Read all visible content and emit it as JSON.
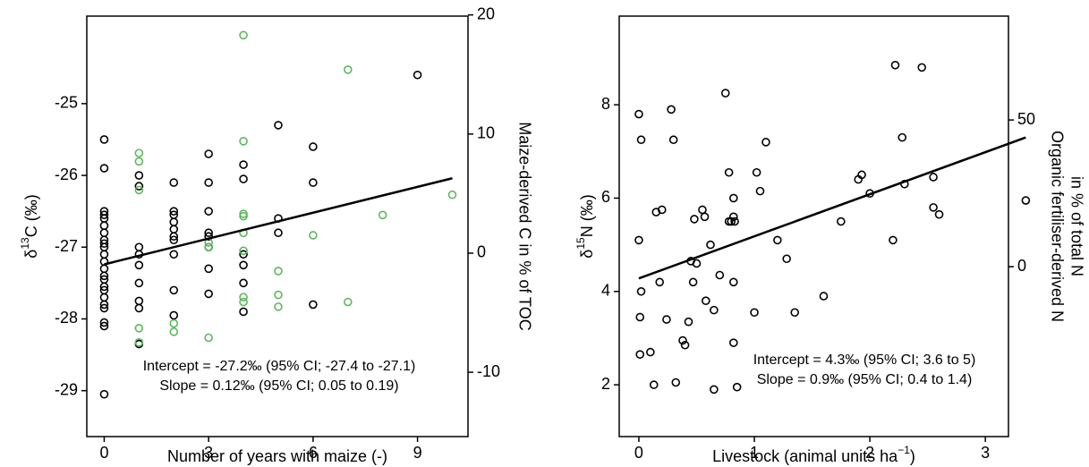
{
  "chart_data": [
    {
      "type": "scatter",
      "xlabel": "Number of years with maize (-)",
      "ylabel": [
        "δ",
        "13",
        "C (‰)"
      ],
      "y2label": "Maize-derived C in % of TOC",
      "xlim": [
        -0.5,
        10.45
      ],
      "xticks": [
        0,
        3,
        6,
        9
      ],
      "ylim": [
        -29.64,
        -23.78
      ],
      "yticks": [
        -29,
        -28,
        -27,
        -26,
        -25
      ],
      "y2lim": [
        -15.4,
        19.9
      ],
      "y2ticks": [
        -10,
        0,
        10,
        20
      ],
      "grid": false,
      "annotations": [
        "Intercept = -27.2‰ (95% CI; -27.4 to -27.1)",
        "Slope = 0.12‰ (95% CI; 0.05 to 0.19)"
      ],
      "series": [
        {
          "color": "#000000",
          "x": [
            0,
            0,
            0,
            0,
            0,
            0,
            0,
            0,
            0,
            0,
            0,
            0,
            0,
            0,
            0,
            0,
            0,
            0,
            0,
            0,
            0,
            0,
            0,
            1,
            1,
            1,
            1,
            1,
            1,
            1,
            1,
            1,
            2,
            2,
            2,
            2,
            2,
            2,
            2,
            2,
            2,
            2,
            3,
            3,
            3,
            3,
            3,
            3,
            3,
            3,
            4,
            4,
            4,
            4,
            4,
            4,
            5,
            5,
            5,
            6,
            6,
            6,
            9
          ],
          "values": [
            -25.5,
            -25.9,
            -26.5,
            -26.55,
            -26.6,
            -26.7,
            -26.8,
            -26.9,
            -26.95,
            -27.0,
            -27.1,
            -27.2,
            -27.3,
            -27.4,
            -27.45,
            -27.55,
            -27.6,
            -27.7,
            -27.8,
            -27.85,
            -28.05,
            -28.1,
            -29.05,
            -26.0,
            -26.15,
            -27.0,
            -27.1,
            -27.25,
            -27.5,
            -27.75,
            -27.85,
            -28.35,
            -26.1,
            -26.5,
            -26.55,
            -26.65,
            -26.75,
            -26.85,
            -26.9,
            -27.1,
            -27.6,
            -27.95,
            -25.7,
            -26.1,
            -26.5,
            -26.8,
            -26.85,
            -27.0,
            -27.3,
            -27.65,
            -25.85,
            -26.05,
            -27.1,
            -27.25,
            -27.5,
            -27.9,
            -25.3,
            -26.6,
            -26.8,
            -25.6,
            -26.1,
            -27.8,
            -24.6
          ]
        },
        {
          "color": "#5cb85c",
          "axis": "y2",
          "x": [
            1,
            1,
            1,
            1,
            1,
            2,
            2,
            3,
            3,
            3,
            4,
            4,
            4,
            4,
            4,
            4,
            4,
            4,
            5,
            5,
            5,
            6,
            7,
            7,
            8,
            10
          ],
          "values": [
            8.4,
            7.7,
            5.3,
            -6.3,
            -7.5,
            -5.9,
            -6.6,
            0.9,
            0.5,
            -7.1,
            18.3,
            9.4,
            3.3,
            3.1,
            1.7,
            0.2,
            -3.7,
            -4.1,
            -1.5,
            -3.5,
            -4.5,
            1.5,
            15.4,
            -4.1,
            3.2,
            4.9
          ]
        },
        {
          "color": "#000000",
          "mode": "line",
          "x": [
            0,
            10
          ],
          "values": [
            -27.24,
            -26.04
          ]
        }
      ]
    },
    {
      "type": "scatter",
      "xlabel": [
        "Livestock (animal units ha",
        "−1",
        ")"
      ],
      "ylabel": [
        "δ",
        "15",
        "N (‰)"
      ],
      "y2label": [
        "Organic fertiliser-derived N",
        "in % of total N"
      ],
      "xlim": [
        -0.17,
        3.2
      ],
      "xticks": [
        0,
        1,
        2,
        3
      ],
      "ylim": [
        0.89,
        9.9
      ],
      "yticks": [
        2,
        4,
        6,
        8
      ],
      "y2lim": [
        -57.9,
        85.4
      ],
      "y2ticks": [
        0,
        50
      ],
      "grid": false,
      "annotations": [
        "Intercept = 4.3‰ (95% CI; 3.6 to 5)",
        "Slope = 0.9‰ (95% CI; 0.4 to 1.4)"
      ],
      "series": [
        {
          "color": "#000000",
          "x": [
            0,
            0.02,
            0,
            0.02,
            0.01,
            0.01,
            0.1,
            0.13,
            0.15,
            0.2,
            0.18,
            0.24,
            0.28,
            0.3,
            0.32,
            0.38,
            0.4,
            0.43,
            0.45,
            0.47,
            0.48,
            0.5,
            0.55,
            0.57,
            0.58,
            0.62,
            0.65,
            0.65,
            0.7,
            0.75,
            0.78,
            0.78,
            0.8,
            0.82,
            0.82,
            0.82,
            0.83,
            0.82,
            0.85,
            1.0,
            1.02,
            1.05,
            1.1,
            1.2,
            1.28,
            1.35,
            1.6,
            1.75,
            1.9,
            1.93,
            2.0,
            2.2,
            2.22,
            2.28,
            2.3,
            2.45,
            2.55,
            2.55,
            2.6,
            3.35
          ],
          "values": [
            7.8,
            7.25,
            5.1,
            4.0,
            3.45,
            2.65,
            2.7,
            2.0,
            5.7,
            5.75,
            4.2,
            3.4,
            7.9,
            7.25,
            2.05,
            2.95,
            2.85,
            3.35,
            4.65,
            4.2,
            5.55,
            4.6,
            5.75,
            5.6,
            3.8,
            5.0,
            3.6,
            1.9,
            4.35,
            8.25,
            6.55,
            5.5,
            5.5,
            4.2,
            6.0,
            5.6,
            5.5,
            2.9,
            1.95,
            3.55,
            6.55,
            6.15,
            7.2,
            5.1,
            4.7,
            3.55,
            3.9,
            5.5,
            6.4,
            6.5,
            6.1,
            5.1,
            8.85,
            7.3,
            6.3,
            8.8,
            6.45,
            5.8,
            5.65,
            5.95
          ]
        },
        {
          "color": "#000000",
          "mode": "line",
          "x": [
            0,
            3.35
          ],
          "values": [
            4.28,
            7.3
          ]
        }
      ]
    }
  ]
}
